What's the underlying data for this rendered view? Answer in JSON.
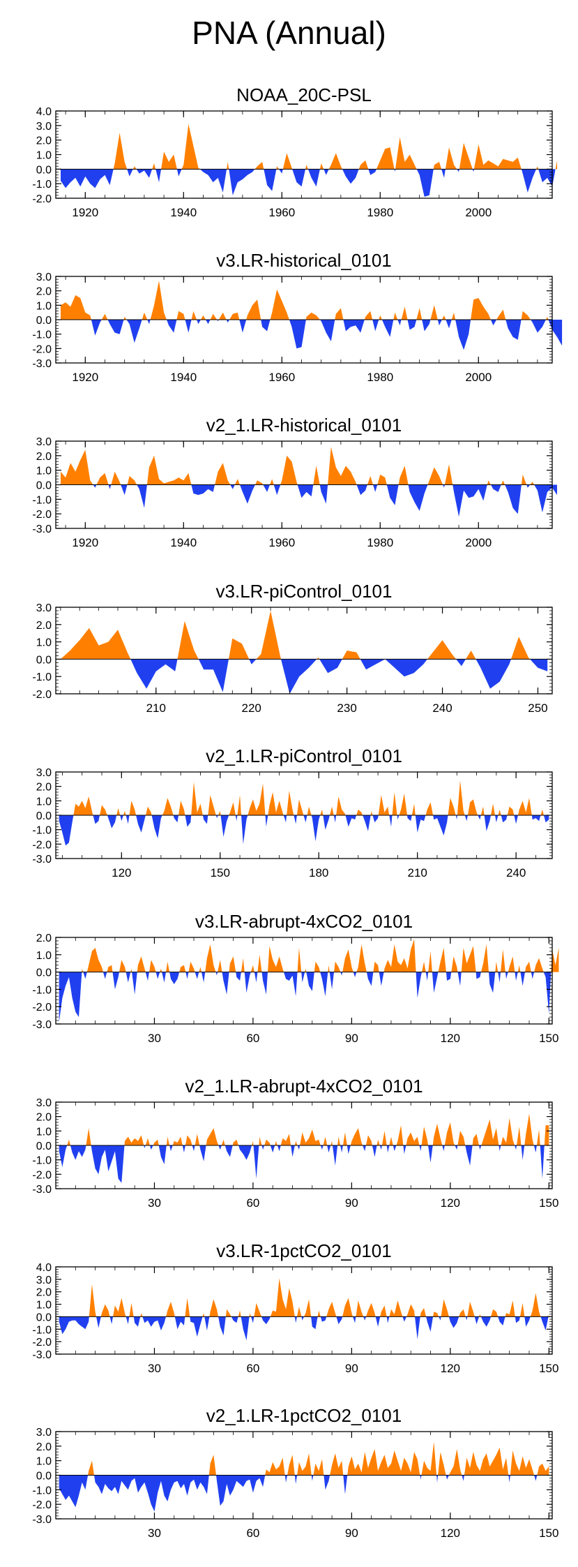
{
  "title": "PNA (Annual)",
  "colors": {
    "positive": "#ff8000",
    "negative": "#2040f0",
    "axis": "#000000"
  },
  "chart_data": [
    {
      "type": "area",
      "title": "NOAA_20C-PSL",
      "ylim": [
        -2.0,
        4.0
      ],
      "yticks": [
        4.0,
        3.0,
        2.0,
        1.0,
        0.0,
        -1.0,
        -2.0
      ],
      "xlim": [
        1914,
        2015
      ],
      "xticks": [
        1920,
        1940,
        1960,
        1980,
        2000
      ],
      "x_start": 1915,
      "values": [
        -0.8,
        -1.3,
        -0.9,
        -0.6,
        -1.2,
        -0.5,
        -1.0,
        -1.3,
        -0.7,
        -0.4,
        -1.1,
        0.4,
        2.5,
        0.5,
        -0.5,
        0.2,
        -0.3,
        -0.1,
        -0.6,
        0.4,
        -0.9,
        1.2,
        0.5,
        1.0,
        -0.5,
        0.3,
        3.1,
        1.6,
        0.1,
        -0.2,
        -0.4,
        -0.9,
        -0.6,
        -1.6,
        0.5,
        -1.8,
        -0.9,
        -0.7,
        -0.4,
        -0.2,
        0.2,
        0.5,
        -1.1,
        -1.5,
        0.2,
        -0.3,
        1.1,
        0.1,
        -0.9,
        -1.2,
        0.3,
        -0.6,
        -1.2,
        0.4,
        -0.4,
        0.3,
        1.1,
        0.2,
        -0.5,
        -1.0,
        -0.6,
        0.3,
        0.6,
        -0.4,
        -0.2,
        0.6,
        1.4,
        1.5,
        -0.2,
        2.2,
        0.5,
        1.0,
        0.3,
        -0.4,
        -1.9,
        -1.8,
        0.3,
        0.5,
        -0.6,
        1.5,
        0.3,
        -0.2,
        1.8,
        0.8,
        -0.2,
        1.7,
        0.3,
        0.6,
        0.4,
        0.2,
        0.7,
        0.6,
        0.5,
        0.8,
        -0.3,
        -1.6,
        -0.6,
        0.2,
        -0.9,
        -0.6,
        -1.2,
        0.6
      ]
    },
    {
      "type": "area",
      "title": "v3.LR-historical_0101",
      "ylim": [
        -3.0,
        3.0
      ],
      "yticks": [
        3.0,
        2.0,
        1.0,
        0.0,
        -1.0,
        -2.0,
        -3.0
      ],
      "xlim": [
        1914,
        2015
      ],
      "xticks": [
        1920,
        1940,
        1960,
        1980,
        2000
      ],
      "x_start": 1915,
      "values": [
        1.0,
        1.2,
        0.9,
        1.7,
        1.5,
        0.5,
        0.3,
        -1.1,
        -0.2,
        0.4,
        -0.3,
        -0.9,
        -1.0,
        0.2,
        -0.3,
        -1.6,
        -0.6,
        0.5,
        -0.3,
        1.0,
        2.7,
        0.5,
        -0.4,
        -0.9,
        0.6,
        0.4,
        -0.9,
        0.6,
        -0.3,
        0.3,
        -0.3,
        0.4,
        -0.1,
        0.5,
        -0.2,
        0.4,
        0.5,
        -0.9,
        0.3,
        1.0,
        1.4,
        -0.5,
        -0.8,
        0.5,
        2.1,
        1.3,
        0.5,
        -0.5,
        -2.0,
        -1.9,
        0.2,
        0.5,
        0.3,
        -0.1,
        -0.9,
        -1.5,
        0.4,
        0.8,
        -0.8,
        -0.5,
        -0.4,
        -0.9,
        0.2,
        0.6,
        -0.8,
        0.3,
        -0.5,
        -1.2,
        0.5,
        -0.4,
        0.9,
        -0.7,
        -0.5,
        0.8,
        -0.8,
        -0.3,
        1.0,
        -0.4,
        0.3,
        -0.6,
        0.5,
        -1.2,
        -2.1,
        -1.0,
        1.4,
        1.5,
        0.9,
        0.4,
        -0.4,
        0.2,
        0.7,
        -0.6,
        -1.2,
        -1.4,
        0.6,
        0.3,
        -0.2,
        -0.9,
        -0.5,
        0.2,
        -0.7,
        -1.2,
        -1.8
      ]
    },
    {
      "type": "area",
      "title": "v2_1.LR-historical_0101",
      "ylim": [
        -3.0,
        3.0
      ],
      "yticks": [
        3.0,
        2.0,
        1.0,
        0.0,
        -1.0,
        -2.0,
        -3.0
      ],
      "xlim": [
        1914,
        2015
      ],
      "xticks": [
        1920,
        1940,
        1960,
        1980,
        2000
      ],
      "x_start": 1915,
      "values": [
        0.9,
        0.5,
        1.5,
        0.9,
        1.7,
        2.4,
        0.3,
        -0.2,
        0.5,
        0.8,
        -0.3,
        0.9,
        0.2,
        -0.7,
        0.6,
        0.3,
        -0.3,
        -1.6,
        1.2,
        2.0,
        0.4,
        0.1,
        0.2,
        0.3,
        0.5,
        0.3,
        0.8,
        -0.6,
        -0.7,
        -0.6,
        -0.3,
        -0.5,
        0.9,
        1.5,
        0.3,
        -0.3,
        0.4,
        -0.5,
        -1.3,
        -0.4,
        0.3,
        0.1,
        -0.5,
        0.4,
        -0.7,
        0.3,
        2.0,
        1.6,
        0.2,
        -0.9,
        -0.5,
        -0.8,
        1.3,
        -0.5,
        -1.3,
        2.6,
        1.2,
        0.6,
        1.3,
        0.9,
        0.2,
        -0.7,
        -0.4,
        0.6,
        -0.5,
        0.7,
        0.5,
        -0.9,
        -1.4,
        0.5,
        1.3,
        -0.5,
        -1.2,
        -1.8,
        -0.6,
        0.3,
        1.2,
        0.6,
        -0.2,
        1.4,
        -0.5,
        -2.2,
        -0.4,
        -0.9,
        -0.8,
        -0.3,
        -1.1,
        0.3,
        -0.3,
        -0.5,
        0.3,
        -0.5,
        -1.6,
        -2.0,
        0.7,
        -0.2,
        0.2,
        -0.4,
        -1.9,
        -0.5,
        -0.2,
        -0.7
      ]
    },
    {
      "type": "area",
      "title": "v3.LR-piControl_0101",
      "ylim": [
        -2.0,
        3.0
      ],
      "yticks": [
        3.0,
        2.0,
        1.0,
        0.0,
        -1.0,
        -2.0
      ],
      "xlim": [
        199.5,
        251.5
      ],
      "xticks": [
        210,
        220,
        230,
        240,
        250
      ],
      "x_start": 200,
      "values": [
        0.0,
        0.5,
        1.1,
        1.8,
        0.8,
        1.0,
        1.7,
        0.4,
        -0.8,
        -1.7,
        -0.7,
        -0.3,
        -0.7,
        2.2,
        0.5,
        -0.6,
        -0.6,
        -1.9,
        1.2,
        0.9,
        -0.3,
        0.3,
        2.8,
        0.2,
        -2.0,
        -1.0,
        -0.5,
        0.1,
        -0.8,
        -0.5,
        0.5,
        0.4,
        -0.6,
        -0.3,
        0.0,
        -0.5,
        -1.0,
        -0.8,
        -0.3,
        0.4,
        1.1,
        0.3,
        -0.4,
        0.5,
        -0.5,
        -1.7,
        -1.3,
        -0.3,
        1.3,
        0.1,
        -0.5,
        -0.7
      ]
    },
    {
      "type": "area",
      "title": "v2_1.LR-piControl_0101",
      "ylim": [
        -3.0,
        3.0
      ],
      "yticks": [
        3.0,
        2.0,
        1.0,
        0.0,
        -1.0,
        -2.0,
        -3.0
      ],
      "xlim": [
        100,
        251
      ],
      "xticks": [
        120,
        150,
        180,
        210,
        240
      ],
      "x_start": 101,
      "values": [
        -0.4,
        -1.2,
        -2.1,
        -1.9,
        -0.5,
        0.8,
        0.6,
        1.0,
        0.5,
        1.3,
        0.3,
        -0.6,
        -0.4,
        0.7,
        0.4,
        -0.2,
        -0.9,
        -0.5,
        0.5,
        -0.4,
        0.3,
        -0.6,
        1.0,
        0.4,
        -0.6,
        -1.2,
        -0.3,
        0.6,
        0.2,
        -0.9,
        -1.6,
        -0.2,
        0.3,
        1.2,
        0.6,
        -0.2,
        -0.5,
        1.0,
        0.4,
        -0.8,
        -0.5,
        2.3,
        0.2,
        0.8,
        -0.3,
        -0.6,
        1.4,
        0.6,
        -0.2,
        0.3,
        -1.5,
        -0.4,
        0.2,
        0.9,
        -0.4,
        1.4,
        -2.0,
        -0.3,
        0.5,
        1.1,
        0.3,
        0.8,
        2.2,
        -0.8,
        0.7,
        1.6,
        0.2,
        1.0,
        0.2,
        -0.5,
        1.7,
        0.4,
        -0.6,
        1.1,
        0.3,
        -0.5,
        0.6,
        -0.2,
        -1.8,
        -0.3,
        0.4,
        -1.0,
        -0.3,
        0.6,
        -0.5,
        1.3,
        0.4,
        0.1,
        -0.8,
        -0.2,
        -0.3,
        0.4,
        0.2,
        -0.4,
        -1.1,
        0.3,
        -0.5,
        -0.2,
        1.4,
        0.2,
        0.6,
        -0.8,
        1.6,
        -0.3,
        0.4,
        1.5,
        -0.2,
        -0.4,
        0.8,
        -1.2,
        -0.3,
        -0.4,
        0.4,
        0.9,
        -0.3,
        -0.2,
        -0.8,
        -1.4,
        -0.5,
        1.2,
        0.6,
        -0.3,
        2.4,
        0.3,
        -0.4,
        0.9,
        1.1,
        0.2,
        -0.3,
        0.6,
        -1.1,
        -0.4,
        0.8,
        -0.5,
        0.4,
        -0.5,
        -0.3,
        0.6,
        0.4,
        -0.6,
        0.4,
        1.0,
        0.2,
        1.2,
        -0.3,
        -0.2,
        -0.4,
        0.4,
        -0.5,
        -0.3
      ]
    },
    {
      "type": "area",
      "title": "v3.LR-abrupt-4xCO2_0101",
      "ylim": [
        -3.0,
        2.0
      ],
      "yticks": [
        2.0,
        1.0,
        0.0,
        -1.0,
        -2.0,
        -3.0
      ],
      "xlim": [
        0,
        151
      ],
      "xticks": [
        30,
        60,
        90,
        120,
        150
      ],
      "x_start": 1,
      "values": [
        -2.9,
        -1.5,
        -0.8,
        -0.3,
        -1.5,
        -2.3,
        -2.6,
        0.2,
        -0.4,
        0.4,
        1.2,
        1.4,
        0.7,
        0.3,
        -0.4,
        0.3,
        0.4,
        -1.0,
        -0.3,
        0.7,
        0.3,
        -0.6,
        0.2,
        -1.3,
        0.4,
        0.9,
        0.2,
        -0.5,
        0.7,
        0.3,
        -0.4,
        0.2,
        -0.6,
        0.6,
        -0.4,
        -0.7,
        -0.4,
        0.3,
        0.4,
        -0.4,
        0.6,
        0.2,
        -0.4,
        0.3,
        -0.6,
        0.8,
        1.6,
        0.4,
        -0.2,
        0.7,
        -0.5,
        -1.3,
        0.5,
        0.9,
        -0.3,
        -0.5,
        0.8,
        -1.2,
        -0.2,
        0.4,
        -0.6,
        1.0,
        -0.5,
        -1.3,
        1.5,
        0.7,
        0.3,
        0.9,
        0.2,
        -0.4,
        -0.5,
        -0.2,
        -1.4,
        1.4,
        -0.6,
        0.2,
        -0.8,
        -1.1,
        0.6,
        0.3,
        -0.4,
        -1.4,
        0.4,
        -1.0,
        0.6,
        0.3,
        -0.2,
        0.8,
        1.3,
        0.3,
        -0.3,
        0.3,
        1.6,
        0.5,
        -0.4,
        -0.8,
        0.6,
        0.4,
        -0.8,
        0.2,
        0.7,
        0.3,
        1.6,
        0.6,
        0.4,
        0.8,
        0.2,
        1.3,
        1.9,
        -1.5,
        -0.3,
        0.6,
        -0.5,
        1.2,
        -1.2,
        -0.3,
        0.6,
        1.4,
        -0.5,
        -0.4,
        0.9,
        0.3,
        -0.8,
        1.4,
        0.5,
        1.0,
        1.5,
        -0.4,
        -0.3,
        0.5,
        1.6,
        -0.7,
        -1.2,
        0.6,
        -0.6,
        1.3,
        -0.4,
        0.3,
        0.9,
        -0.5,
        0.4,
        -0.8,
        0.3,
        0.6,
        -0.4,
        0.4,
        0.8,
        0.2,
        -0.3,
        -2.4,
        1.3,
        0.4,
        1.4
      ]
    },
    {
      "type": "area",
      "title": "v2_1.LR-abrupt-4xCO2_0101",
      "ylim": [
        -3.0,
        3.0
      ],
      "yticks": [
        3.0,
        2.0,
        1.0,
        0.0,
        -1.0,
        -2.0,
        -3.0
      ],
      "xlim": [
        0,
        151
      ],
      "xticks": [
        30,
        60,
        90,
        120,
        150
      ],
      "x_start": 1,
      "values": [
        -0.4,
        -1.5,
        -0.3,
        0.4,
        -0.5,
        -1.0,
        -0.4,
        -0.8,
        -0.3,
        1.2,
        -0.4,
        -1.6,
        -2.0,
        -0.8,
        -0.3,
        -1.8,
        -1.1,
        -0.4,
        -2.3,
        -2.6,
        0.3,
        0.6,
        0.2,
        0.5,
        0.3,
        0.7,
        -0.2,
        0.5,
        -0.3,
        0.2,
        0.4,
        -0.8,
        -1.3,
        0.6,
        -0.4,
        0.3,
        0.2,
        0.6,
        -0.5,
        0.7,
        0.4,
        -0.4,
        0.8,
        -0.3,
        -1.1,
        0.4,
        0.8,
        1.2,
        0.3,
        -0.3,
        0.4,
        -0.4,
        -0.8,
        0.2,
        0.4,
        -0.3,
        -0.6,
        -1.0,
        -0.5,
        0.3,
        -2.3,
        0.6,
        -0.3,
        0.4,
        0.2,
        -0.5,
        0.3,
        -0.4,
        0.5,
        0.3,
        0.8,
        -0.8,
        0.3,
        -0.3,
        0.9,
        0.2,
        0.5,
        1.1,
        0.3,
        0.4,
        -0.3,
        0.6,
        -0.5,
        0.3,
        -1.4,
        0.6,
        -0.5,
        0.9,
        -0.6,
        0.3,
        0.8,
        1.2,
        0.2,
        -0.4,
        0.7,
        0.3,
        -0.8,
        0.4,
        -0.3,
        1.0,
        -0.5,
        0.6,
        -0.4,
        0.3,
        1.4,
        -0.6,
        0.5,
        0.9,
        0.3,
        0.6,
        -0.4,
        1.3,
        0.4,
        -1.2,
        0.6,
        1.5,
        0.5,
        -0.4,
        0.9,
        1.6,
        0.2,
        -0.3,
        1.0,
        0.6,
        -0.5,
        -1.4,
        0.5,
        0.8,
        -0.3,
        0.4,
        1.1,
        1.8,
        0.4,
        1.2,
        -0.4,
        0.6,
        0.2,
        1.9,
        0.4,
        -0.3,
        1.3,
        -1.0,
        0.8,
        2.2,
        0.4,
        -0.5,
        1.1,
        -2.3,
        1.4,
        1.4
      ]
    },
    {
      "type": "area",
      "title": "v3.LR-1pctCO2_0101",
      "ylim": [
        -3.0,
        4.0
      ],
      "yticks": [
        4.0,
        3.0,
        2.0,
        1.0,
        0.0,
        -1.0,
        -2.0,
        -3.0
      ],
      "xlim": [
        0,
        151
      ],
      "xticks": [
        30,
        60,
        90,
        120,
        150
      ],
      "x_start": 1,
      "values": [
        -0.4,
        -1.4,
        -1.0,
        -0.4,
        -0.3,
        -0.3,
        -0.6,
        -0.8,
        -1.0,
        -0.4,
        2.6,
        0.4,
        -0.9,
        0.3,
        1.0,
        0.5,
        -0.6,
        0.9,
        0.4,
        1.5,
        0.3,
        -0.6,
        1.1,
        -0.5,
        -0.8,
        0.3,
        -0.5,
        -0.3,
        -0.8,
        -0.4,
        -0.3,
        -1.1,
        -0.5,
        0.5,
        1.2,
        0.3,
        -1.0,
        -0.4,
        -0.7,
        1.5,
        -0.4,
        -0.5,
        -1.6,
        -0.6,
        0.3,
        -1.1,
        0.4,
        1.4,
        0.6,
        -0.8,
        -1.5,
        0.6,
        0.2,
        -0.3,
        -0.5,
        0.5,
        -1.0,
        -1.9,
        0.3,
        -0.5,
        1.1,
        0.4,
        -0.3,
        -0.6,
        -0.2,
        0.5,
        0.4,
        3.1,
        1.4,
        0.6,
        2.3,
        1.2,
        -0.5,
        0.8,
        -0.3,
        0.3,
        1.4,
        -0.8,
        -1.0,
        0.5,
        -0.4,
        -0.3,
        0.6,
        1.2,
        0.3,
        -0.6,
        -0.2,
        0.9,
        1.5,
        0.3,
        -0.5,
        1.3,
        0.4,
        -0.3,
        0.5,
        1.1,
        0.3,
        -0.8,
        0.4,
        0.9,
        -0.5,
        0.6,
        0.2,
        1.3,
        0.4,
        -0.4,
        0.2,
        1.0,
        0.5,
        -1.8,
        0.3,
        0.7,
        -0.4,
        -1.2,
        0.4,
        0.3,
        -0.3,
        1.4,
        0.6,
        -0.4,
        -0.9,
        -0.5,
        0.3,
        0.6,
        -0.3,
        1.2,
        0.4,
        -0.6,
        0.2,
        -0.4,
        -0.8,
        -0.3,
        0.6,
        0.4,
        -0.4,
        -0.7,
        0.3,
        0.2,
        1.3,
        -0.5,
        -0.3,
        1.1,
        -0.8,
        -0.3,
        0.5,
        1.9,
        0.4,
        -0.4,
        -1.1,
        0.2
      ]
    },
    {
      "type": "area",
      "title": "v2_1.LR-1pctCO2_0101",
      "ylim": [
        -3.0,
        3.0
      ],
      "yticks": [
        3.0,
        2.0,
        1.0,
        0.0,
        -1.0,
        -2.0,
        -3.0
      ],
      "xlim": [
        0,
        151
      ],
      "xticks": [
        30,
        60,
        90,
        120,
        150
      ],
      "x_start": 1,
      "values": [
        -0.9,
        -1.3,
        -1.7,
        -1.4,
        -1.8,
        -2.2,
        -1.4,
        -0.5,
        -1.0,
        0.3,
        1.0,
        -0.5,
        -0.8,
        -1.3,
        -0.6,
        -0.9,
        -1.1,
        -0.8,
        -1.3,
        -0.4,
        -0.7,
        -1.0,
        -0.4,
        -0.2,
        -1.2,
        -0.8,
        -0.5,
        -1.2,
        -2.0,
        -2.5,
        -1.2,
        -0.4,
        -1.4,
        -1.8,
        -1.0,
        -0.5,
        -0.4,
        -0.9,
        -0.6,
        -1.4,
        -0.5,
        -0.3,
        -1.0,
        -0.5,
        -0.8,
        -1.3,
        0.8,
        1.4,
        -0.4,
        -2.1,
        -1.8,
        -0.6,
        -1.4,
        -1.0,
        -0.4,
        -0.6,
        -0.8,
        -0.4,
        -0.3,
        -1.2,
        -0.4,
        -0.2,
        -0.8,
        0.4,
        0.2,
        0.9,
        0.4,
        0.6,
        1.2,
        -0.5,
        0.7,
        1.4,
        -0.6,
        0.9,
        0.3,
        0.6,
        1.5,
        -0.4,
        0.8,
        0.3,
        1.1,
        -1.0,
        -0.4,
        0.7,
        1.5,
        0.5,
        1.0,
        -1.3,
        0.6,
        1.3,
        0.4,
        0.8,
        0.2,
        1.6,
        0.5,
        1.2,
        1.8,
        0.3,
        0.9,
        1.4,
        0.5,
        0.8,
        1.7,
        1.0,
        0.3,
        1.2,
        0.8,
        0.2,
        1.6,
        1.1,
        -0.3,
        1.0,
        0.5,
        0.3,
        2.3,
        -0.5,
        1.6,
        0.7,
        -0.3,
        0.2,
        0.6,
        1.8,
        0.4,
        -0.4,
        1.2,
        0.5,
        1.6,
        0.7,
        0.3,
        1.1,
        1.5,
        0.6,
        1.0,
        1.4,
        1.9,
        0.4,
        1.2,
        -0.5,
        1.7,
        0.8,
        0.3,
        1.3,
        0.5,
        1.1,
        0.4,
        -0.4,
        0.6,
        0.8,
        0.3,
        0.6
      ]
    }
  ]
}
